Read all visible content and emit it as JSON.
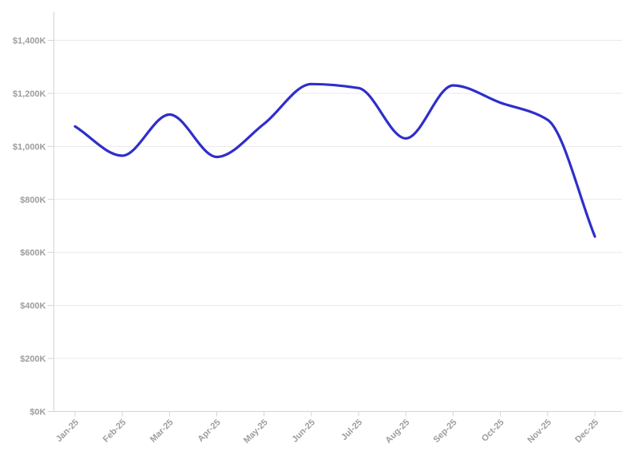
{
  "chart_data": {
    "type": "line",
    "title": "",
    "xlabel": "",
    "ylabel": "",
    "categories": [
      "Jan-25",
      "Feb-25",
      "Mar-25",
      "Apr-25",
      "May-25",
      "Jun-25",
      "Jul-25",
      "Aug-25",
      "Sep-25",
      "Oct-25",
      "Nov-25",
      "Dec-25"
    ],
    "values": [
      1075,
      965,
      1120,
      960,
      1085,
      1235,
      1220,
      1030,
      1230,
      1165,
      1100,
      660
    ],
    "ylim": [
      0,
      1400
    ],
    "y_tick_step": 200,
    "y_tick_labels": [
      "$0K",
      "$200K",
      "$400K",
      "$600K",
      "$800K",
      "$1,000K",
      "$1,200K",
      "$1,400K"
    ],
    "grid": true,
    "legend": false,
    "interpolation": "monotone",
    "x_labels_rotated": true,
    "colors": {
      "line": "#2f2ecb",
      "grid": "#e9e9e9",
      "axis": "#d4d4d4",
      "tick": "#d4d4d4",
      "label": "#9d9d9d",
      "background": "#ffffff"
    }
  }
}
